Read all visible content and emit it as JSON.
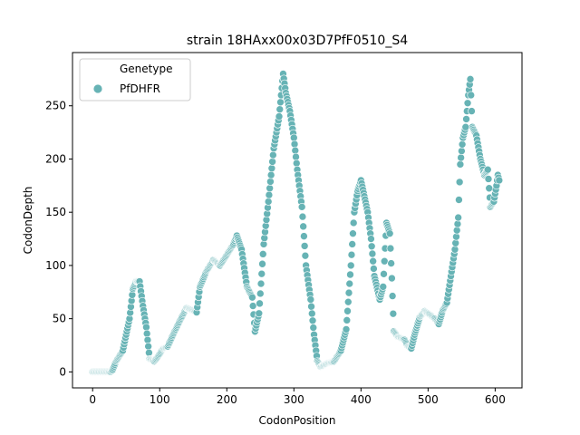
{
  "chart_data": {
    "type": "scatter",
    "title": "strain 18HAxx00x03D7PfF0510_S4",
    "xlabel": "CodonPosition",
    "ylabel": "CodonDepth",
    "xlim": [
      -30,
      640
    ],
    "ylim": [
      -15,
      300
    ],
    "xticks": [
      0,
      100,
      200,
      300,
      400,
      500,
      600
    ],
    "yticks": [
      0,
      50,
      100,
      150,
      200,
      250
    ],
    "grid": false,
    "legend": {
      "title": "Genetype",
      "placement": "top-left",
      "entries": [
        "PfDHFR"
      ]
    },
    "series": [
      {
        "name": "PfDHFR",
        "color": "#67b3b5",
        "anchors": [
          [
            0,
            0
          ],
          [
            27,
            0
          ],
          [
            30,
            2
          ],
          [
            35,
            10
          ],
          [
            45,
            20
          ],
          [
            55,
            50
          ],
          [
            60,
            78
          ],
          [
            65,
            85
          ],
          [
            70,
            85
          ],
          [
            75,
            62
          ],
          [
            80,
            42
          ],
          [
            85,
            12
          ],
          [
            92,
            10
          ],
          [
            98,
            15
          ],
          [
            105,
            22
          ],
          [
            112,
            24
          ],
          [
            120,
            35
          ],
          [
            130,
            48
          ],
          [
            140,
            60
          ],
          [
            148,
            58
          ],
          [
            155,
            56
          ],
          [
            160,
            80
          ],
          [
            170,
            95
          ],
          [
            180,
            105
          ],
          [
            190,
            100
          ],
          [
            200,
            110
          ],
          [
            210,
            120
          ],
          [
            215,
            128
          ],
          [
            222,
            115
          ],
          [
            230,
            80
          ],
          [
            238,
            70
          ],
          [
            242,
            38
          ],
          [
            248,
            55
          ],
          [
            255,
            120
          ],
          [
            262,
            160
          ],
          [
            270,
            210
          ],
          [
            278,
            240
          ],
          [
            284,
            280
          ],
          [
            288,
            262
          ],
          [
            294,
            245
          ],
          [
            300,
            220
          ],
          [
            305,
            190
          ],
          [
            312,
            155
          ],
          [
            318,
            100
          ],
          [
            325,
            68
          ],
          [
            330,
            35
          ],
          [
            335,
            10
          ],
          [
            340,
            5
          ],
          [
            350,
            8
          ],
          [
            360,
            10
          ],
          [
            370,
            20
          ],
          [
            378,
            40
          ],
          [
            385,
            100
          ],
          [
            390,
            150
          ],
          [
            395,
            170
          ],
          [
            400,
            180
          ],
          [
            405,
            165
          ],
          [
            410,
            150
          ],
          [
            415,
            125
          ],
          [
            420,
            90
          ],
          [
            428,
            68
          ],
          [
            433,
            80
          ],
          [
            438,
            140
          ],
          [
            443,
            130
          ],
          [
            446,
            88
          ],
          [
            449,
            38
          ],
          [
            455,
            33
          ],
          [
            465,
            30
          ],
          [
            470,
            24
          ],
          [
            475,
            22
          ],
          [
            480,
            35
          ],
          [
            488,
            52
          ],
          [
            495,
            57
          ],
          [
            502,
            54
          ],
          [
            510,
            50
          ],
          [
            516,
            45
          ],
          [
            522,
            58
          ],
          [
            528,
            65
          ],
          [
            534,
            90
          ],
          [
            540,
            115
          ],
          [
            545,
            145
          ],
          [
            548,
            195
          ],
          [
            552,
            220
          ],
          [
            556,
            230
          ],
          [
            560,
            260
          ],
          [
            563,
            275
          ],
          [
            566,
            230
          ],
          [
            572,
            222
          ],
          [
            578,
            200
          ],
          [
            584,
            185
          ],
          [
            589,
            190
          ],
          [
            593,
            155
          ],
          [
            598,
            160
          ],
          [
            602,
            175
          ],
          [
            604,
            185
          ],
          [
            606,
            180
          ]
        ]
      }
    ]
  }
}
